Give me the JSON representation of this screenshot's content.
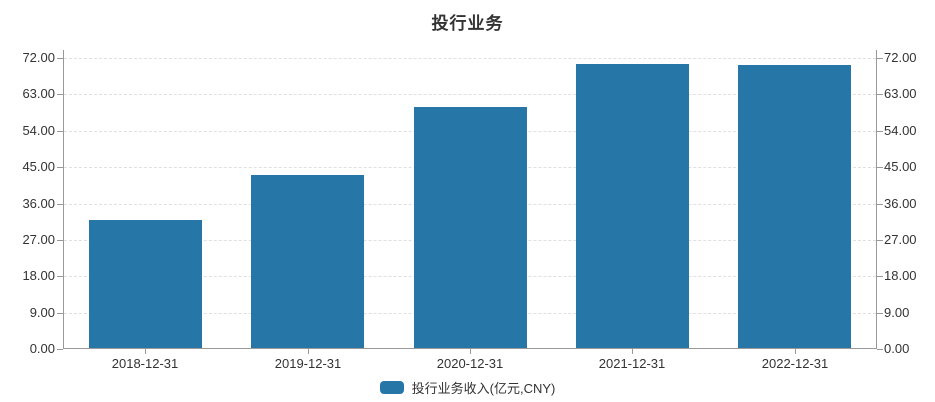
{
  "chart_data": {
    "type": "bar",
    "title": "投行业务",
    "categories": [
      "2018-12-31",
      "2019-12-31",
      "2020-12-31",
      "2021-12-31",
      "2022-12-31"
    ],
    "series": [
      {
        "name": "投行业务收入(亿元,CNY)",
        "values": [
          31.7,
          42.9,
          59.7,
          70.3,
          70.0
        ]
      }
    ],
    "xlabel": "",
    "ylabel": "",
    "ylim": [
      0,
      72
    ],
    "ytick_interval": 9,
    "ytick_labels": [
      "0.00",
      "9.00",
      "18.00",
      "27.00",
      "36.00",
      "45.00",
      "54.00",
      "63.00",
      "72.00"
    ],
    "yaxis_sides": "left and right",
    "grid": "horizontal dashed",
    "legend_position": "bottom",
    "bar_color": "#2677a7"
  }
}
